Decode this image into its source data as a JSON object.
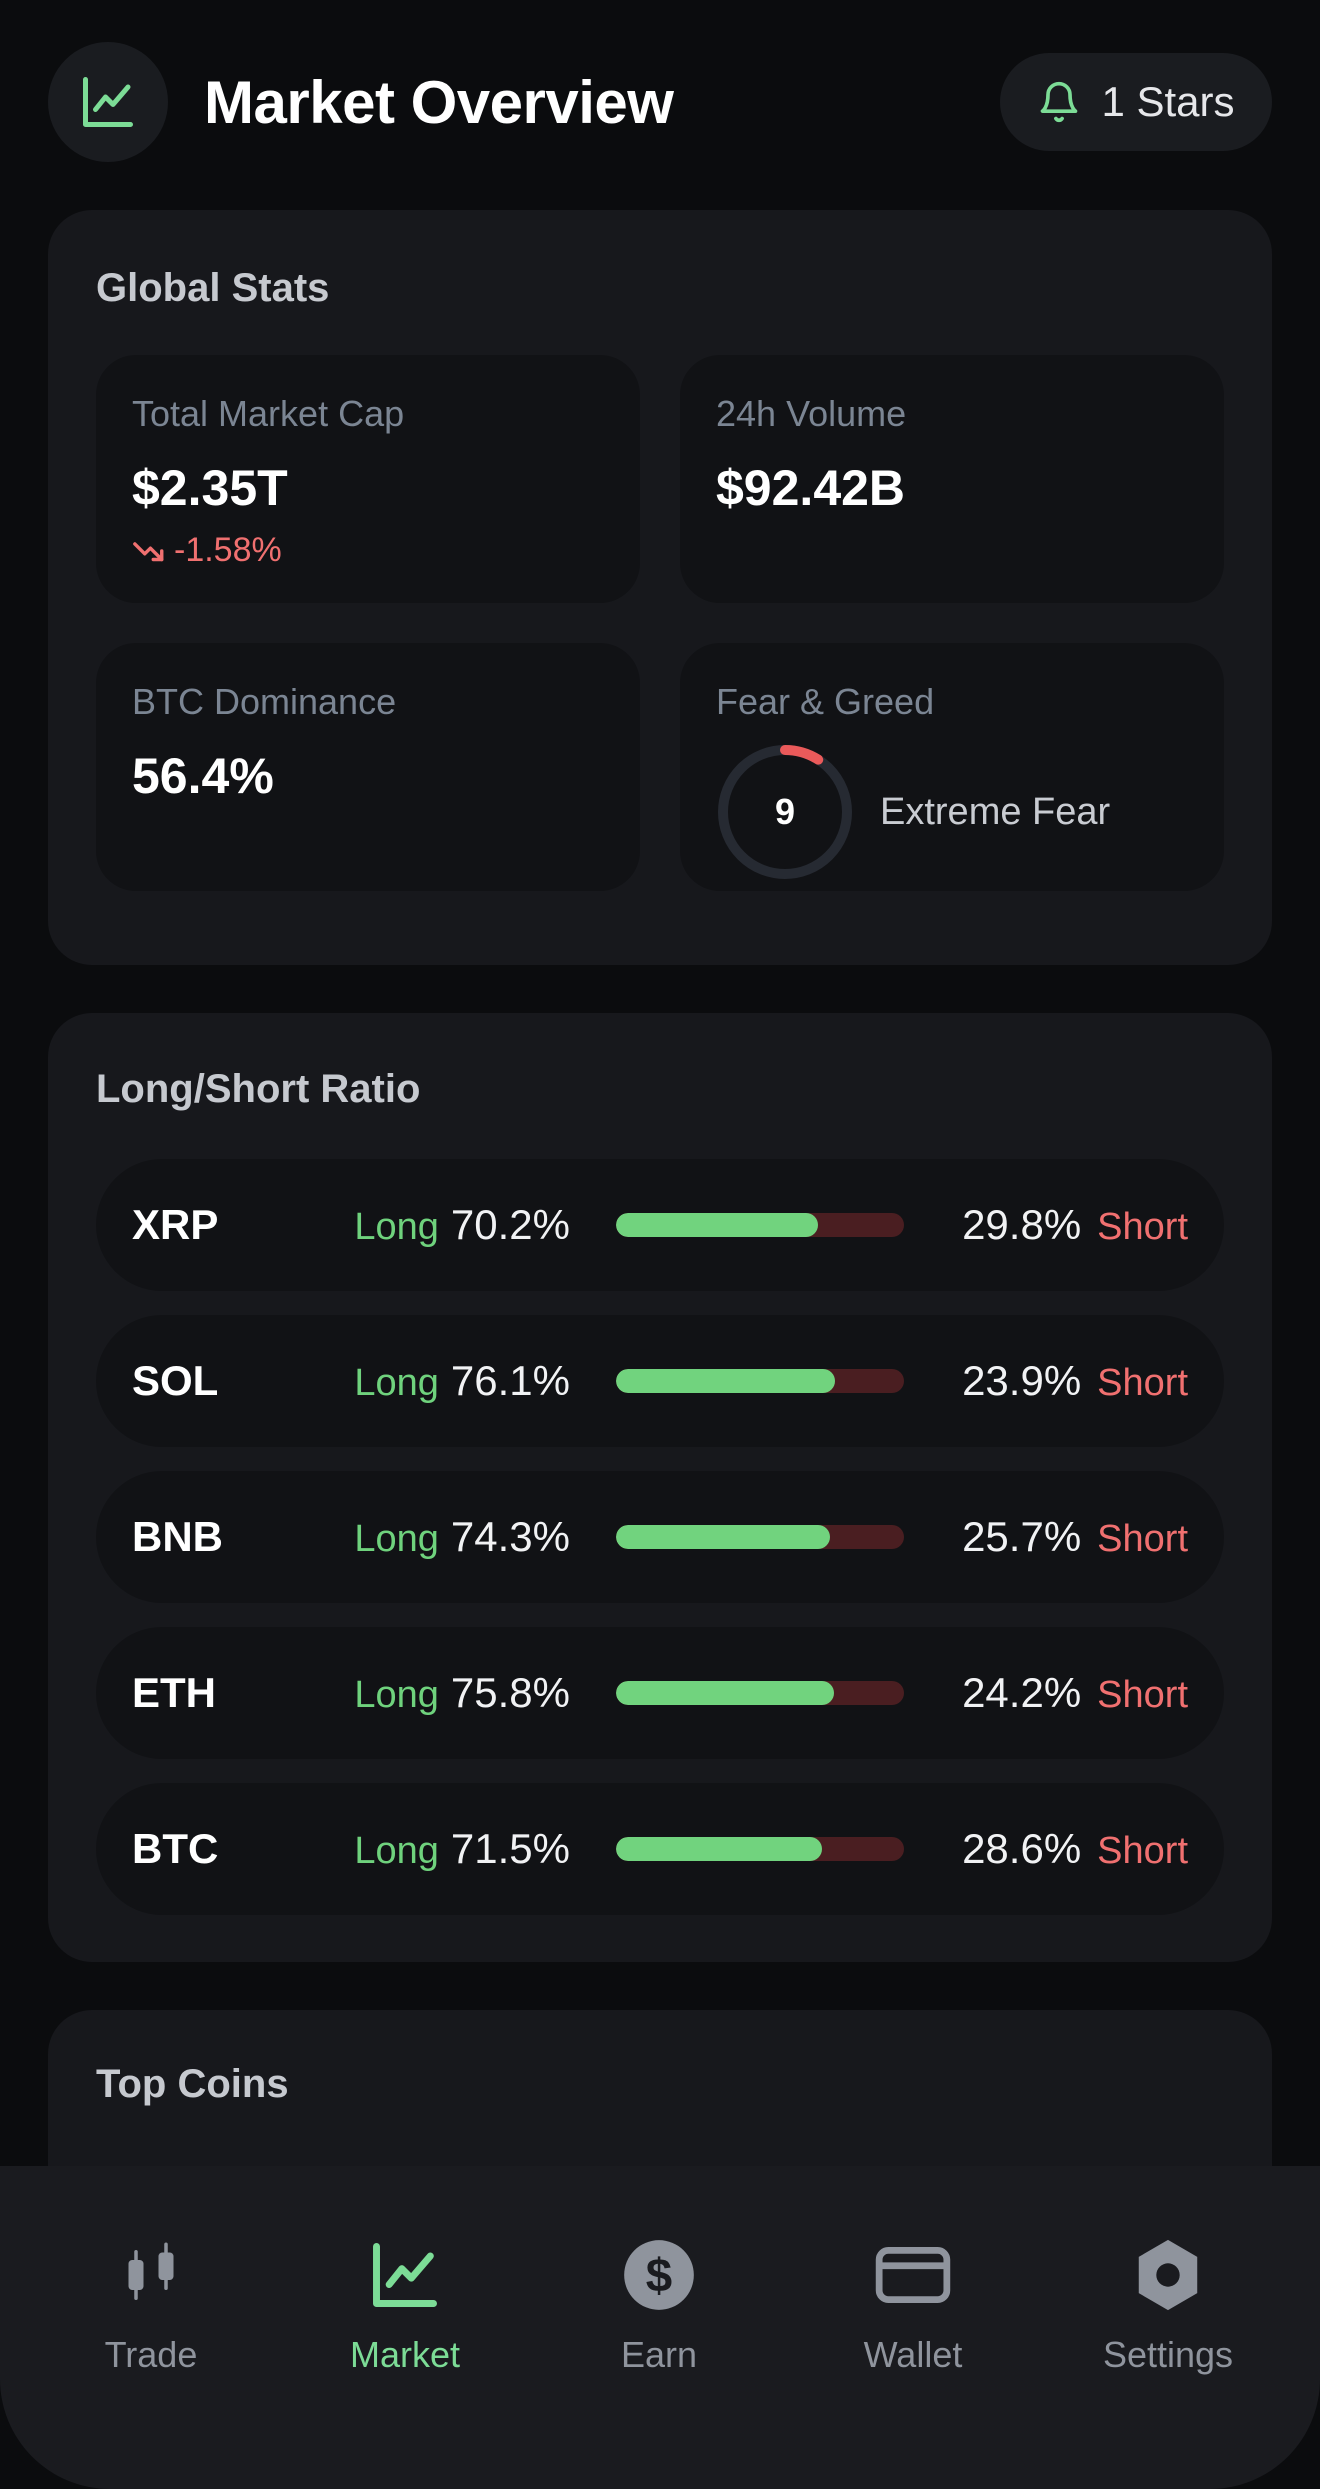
{
  "header": {
    "title": "Market Overview",
    "icon": "chart-line-icon",
    "stars_label": "1 Stars",
    "stars_icon": "bell-icon"
  },
  "global_stats": {
    "title": "Global Stats",
    "market_cap": {
      "label": "Total Market Cap",
      "value": "$2.35T",
      "change": "-1.58%"
    },
    "volume": {
      "label": "24h Volume",
      "value": "$92.42B"
    },
    "btc_dominance": {
      "label": "BTC Dominance",
      "value": "56.4%"
    },
    "fear_greed": {
      "label": "Fear & Greed",
      "value": "9",
      "level": 0.09,
      "sentiment": "Extreme Fear"
    }
  },
  "long_short": {
    "title": "Long/Short Ratio",
    "long_label": "Long",
    "short_label": "Short",
    "rows": [
      {
        "symbol": "XRP",
        "long": "70.2%",
        "short": "29.8%",
        "long_ratio": 0.702
      },
      {
        "symbol": "SOL",
        "long": "76.1%",
        "short": "23.9%",
        "long_ratio": 0.761
      },
      {
        "symbol": "BNB",
        "long": "74.3%",
        "short": "25.7%",
        "long_ratio": 0.743
      },
      {
        "symbol": "ETH",
        "long": "75.8%",
        "short": "24.2%",
        "long_ratio": 0.758
      },
      {
        "symbol": "BTC",
        "long": "71.5%",
        "short": "28.6%",
        "long_ratio": 0.715
      }
    ]
  },
  "top_coins": {
    "title": "Top Coins"
  },
  "nav": {
    "items": [
      {
        "label": "Trade",
        "icon": "candlestick-icon"
      },
      {
        "label": "Market",
        "icon": "chart-line-icon",
        "active": true
      },
      {
        "label": "Earn",
        "icon": "dollar-coin-icon"
      },
      {
        "label": "Wallet",
        "icon": "wallet-icon"
      },
      {
        "label": "Settings",
        "icon": "settings-hexagon-icon"
      }
    ]
  },
  "colors": {
    "accent_green": "#71d37e",
    "negative_red": "#f07070",
    "short_bar_bg": "#4a1e21",
    "card_bg": "#17181c",
    "page_bg": "#0b0c0e"
  }
}
